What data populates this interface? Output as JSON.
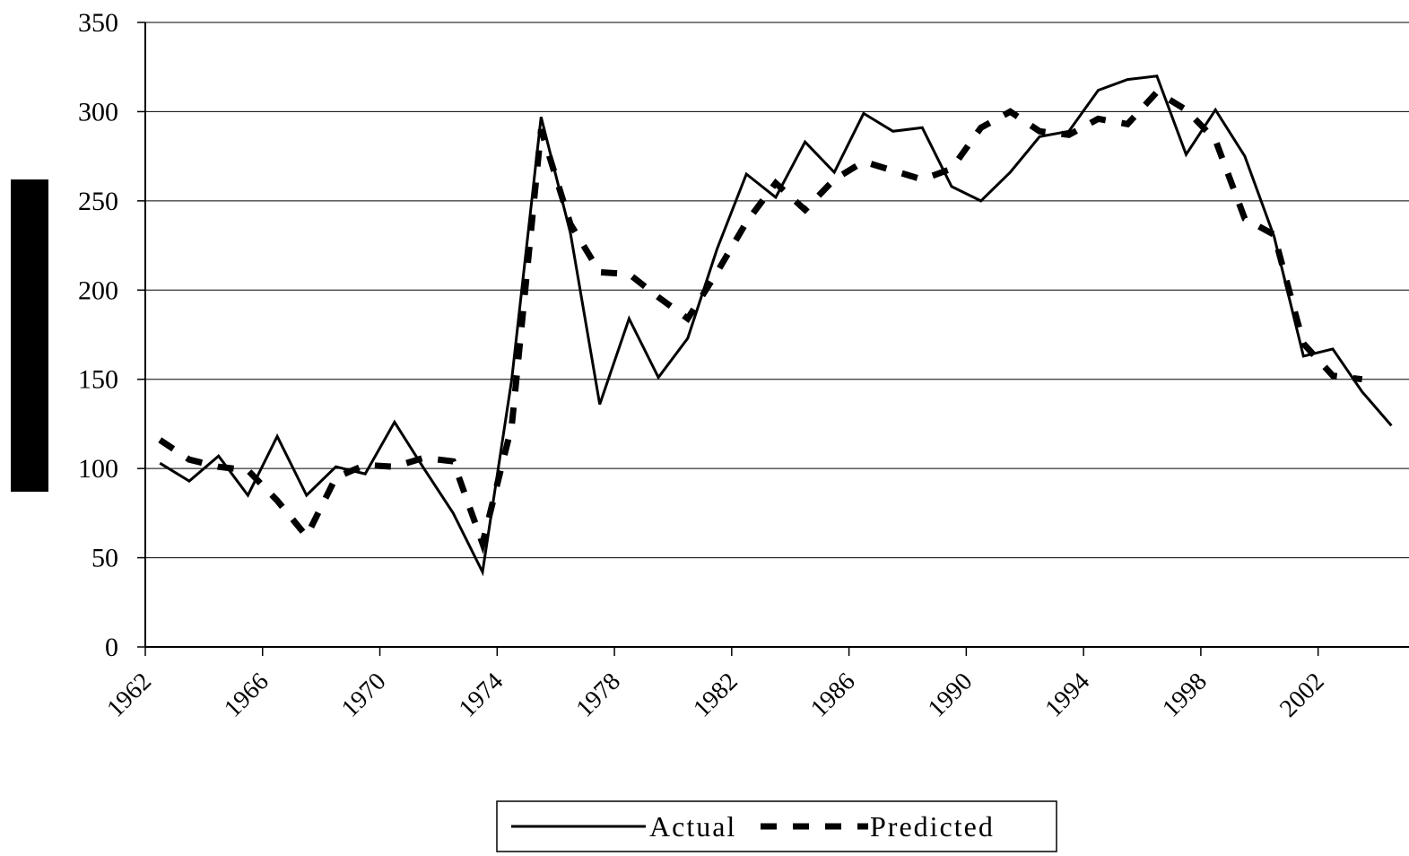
{
  "chart_data": {
    "type": "line",
    "title": "",
    "xlabel": "",
    "ylabel": "",
    "ylim": [
      0,
      350
    ],
    "yticks": [
      "0",
      "50",
      "100",
      "150",
      "200",
      "250",
      "300",
      "350"
    ],
    "xtick_labels": [
      "1962",
      "1966",
      "1970",
      "1974",
      "1978",
      "1982",
      "1986",
      "1990",
      "1994",
      "1998",
      "2002"
    ],
    "x": [
      1962.5,
      1963.5,
      1964.5,
      1965.5,
      1966.5,
      1967.5,
      1968.5,
      1969.5,
      1970.5,
      1971.5,
      1972.5,
      1973.5,
      1974.5,
      1975.5,
      1976.5,
      1977.5,
      1978.5,
      1979.5,
      1980.5,
      1981.5,
      1982.5,
      1983.5,
      1984.5,
      1985.5,
      1986.5,
      1987.5,
      1988.5,
      1989.5,
      1990.5,
      1991.5,
      1992.5,
      1993.5,
      1994.5,
      1995.5,
      1996.5,
      1997.5,
      1998.5,
      1999.5,
      2000.5,
      2001.5,
      2002.5,
      2003.5,
      2004.5
    ],
    "grid": true,
    "legend_position": "bottom",
    "series": [
      {
        "name": "Actual",
        "style": "solid",
        "values": [
          103,
          93,
          107,
          85,
          118,
          85,
          101,
          97,
          126,
          100,
          75,
          42,
          150,
          297,
          232,
          136,
          184,
          151,
          173,
          223,
          265,
          252,
          283,
          266,
          299,
          289,
          291,
          258,
          250,
          266,
          286,
          289,
          312,
          318,
          320,
          276,
          301,
          275,
          230,
          163,
          167,
          143,
          124
        ]
      },
      {
        "name": "Predicted",
        "style": "dashed",
        "values": [
          116,
          105,
          101,
          99,
          82,
          62,
          95,
          102,
          101,
          106,
          104,
          58,
          124,
          290,
          237,
          210,
          209,
          196,
          184,
          210,
          238,
          260,
          245,
          262,
          272,
          267,
          262,
          268,
          291,
          300,
          289,
          287,
          296,
          293,
          311,
          301,
          284,
          240,
          231,
          170,
          152,
          150,
          null
        ]
      }
    ]
  },
  "legend": {
    "actual_label": "Actual",
    "predicted_label": "Predicted"
  },
  "colors": {
    "line": "#000000",
    "grid": "#000000",
    "background": "#ffffff",
    "side_bar": "#000000"
  }
}
